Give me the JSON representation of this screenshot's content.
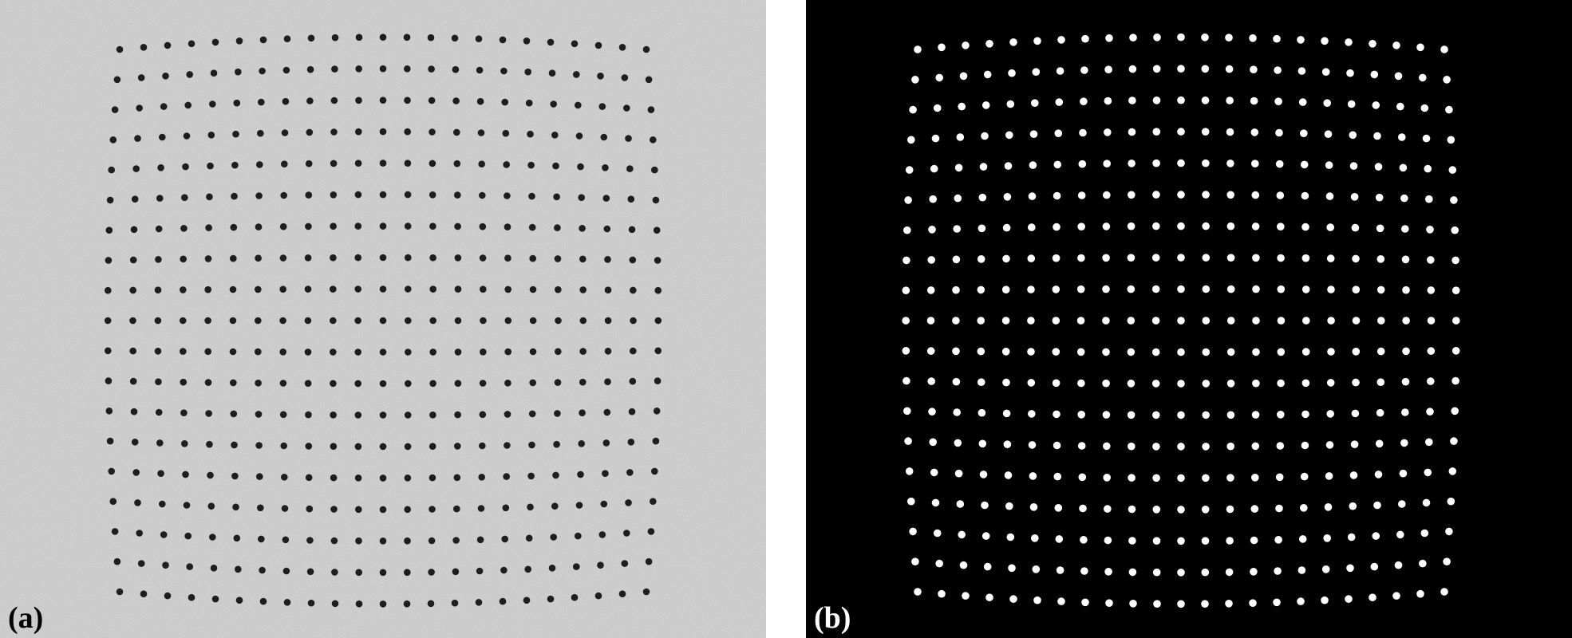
{
  "figure": {
    "panels": [
      {
        "label": "(a)",
        "description_kind": "noisy grayscale calibration image",
        "background_color": "#d0d0d0",
        "dot_color": "#1e1e1e",
        "label_color": "#000000",
        "grid_columns": 23,
        "grid_rows": 19
      },
      {
        "label": "(b)",
        "description_kind": "binarized image",
        "background_color": "#000000",
        "dot_color": "#ffffff",
        "label_color": "#ffffff",
        "grid_columns": 23,
        "grid_rows": 19
      }
    ]
  }
}
